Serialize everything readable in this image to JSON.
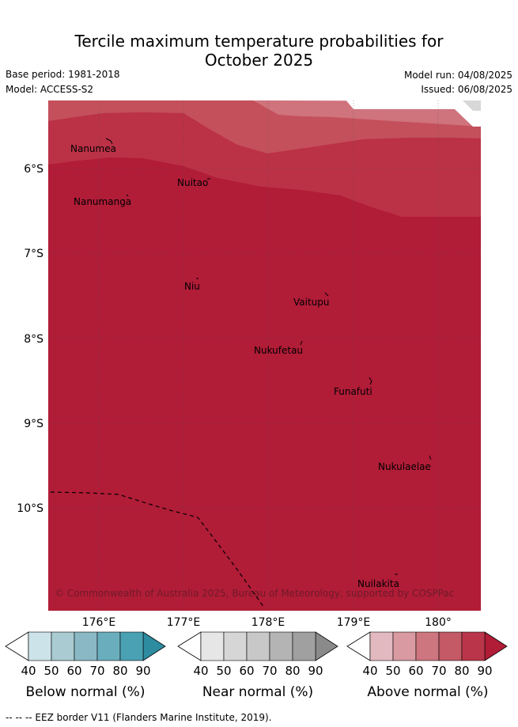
{
  "header": {
    "title_line1": "Tercile maximum temperature probabilities for",
    "title_line2": "October 2025",
    "base_period": "Base period: 1981-2018",
    "model": "Model: ACCESS-S2",
    "model_run": "Model run: 04/08/2025",
    "issued": "Issued: 06/08/2025"
  },
  "map": {
    "lat_labels": [
      "6°S",
      "7°S",
      "8°S",
      "9°S",
      "10°S"
    ],
    "lon_labels": [
      "176°E",
      "177°E",
      "178°E",
      "179°E",
      "180°"
    ],
    "places": [
      "Nanumea",
      "Nuitao",
      "Nanumanga",
      "Niu",
      "Vaitupu",
      "Nukufetau",
      "Funafuti",
      "Nukulaelae",
      "Nuilakita"
    ],
    "copyright": "© Commonwealth of Australia 2025, Bureau of Meteorology, supported by COSPPac",
    "colors": {
      "above_90": "#b11c37",
      "above_80": "#bb3146",
      "above_70": "#c4505c",
      "above_60": "#cf737c",
      "above_50": "#db9aa1",
      "near_40": "#e6e6e6",
      "near_50": "#d8d8d8"
    }
  },
  "colorbars": [
    {
      "label": "Below normal (%)",
      "ticks": [
        "40",
        "50",
        "60",
        "70",
        "80",
        "90"
      ],
      "colors": [
        "#cce3e9",
        "#a9cbd1",
        "#8ab8c4",
        "#6aaebd",
        "#4aa1b3",
        "#2d8ca0"
      ]
    },
    {
      "label": "Near normal (%)",
      "ticks": [
        "40",
        "50",
        "60",
        "70",
        "80",
        "90"
      ],
      "colors": [
        "#e6e6e6",
        "#d6d6d6",
        "#c8c8c8",
        "#b4b4b4",
        "#a0a0a0",
        "#8a8a8a"
      ]
    },
    {
      "label": "Above normal (%)",
      "ticks": [
        "40",
        "50",
        "60",
        "70",
        "80",
        "90"
      ],
      "colors": [
        "#e3b9c0",
        "#d99aa1",
        "#ce767f",
        "#c35a66",
        "#ba3549",
        "#b11c37"
      ]
    }
  ],
  "footer": {
    "eez_text": "--  --  -- EEZ border V11 (Flanders Marine Institute, 2019)."
  }
}
